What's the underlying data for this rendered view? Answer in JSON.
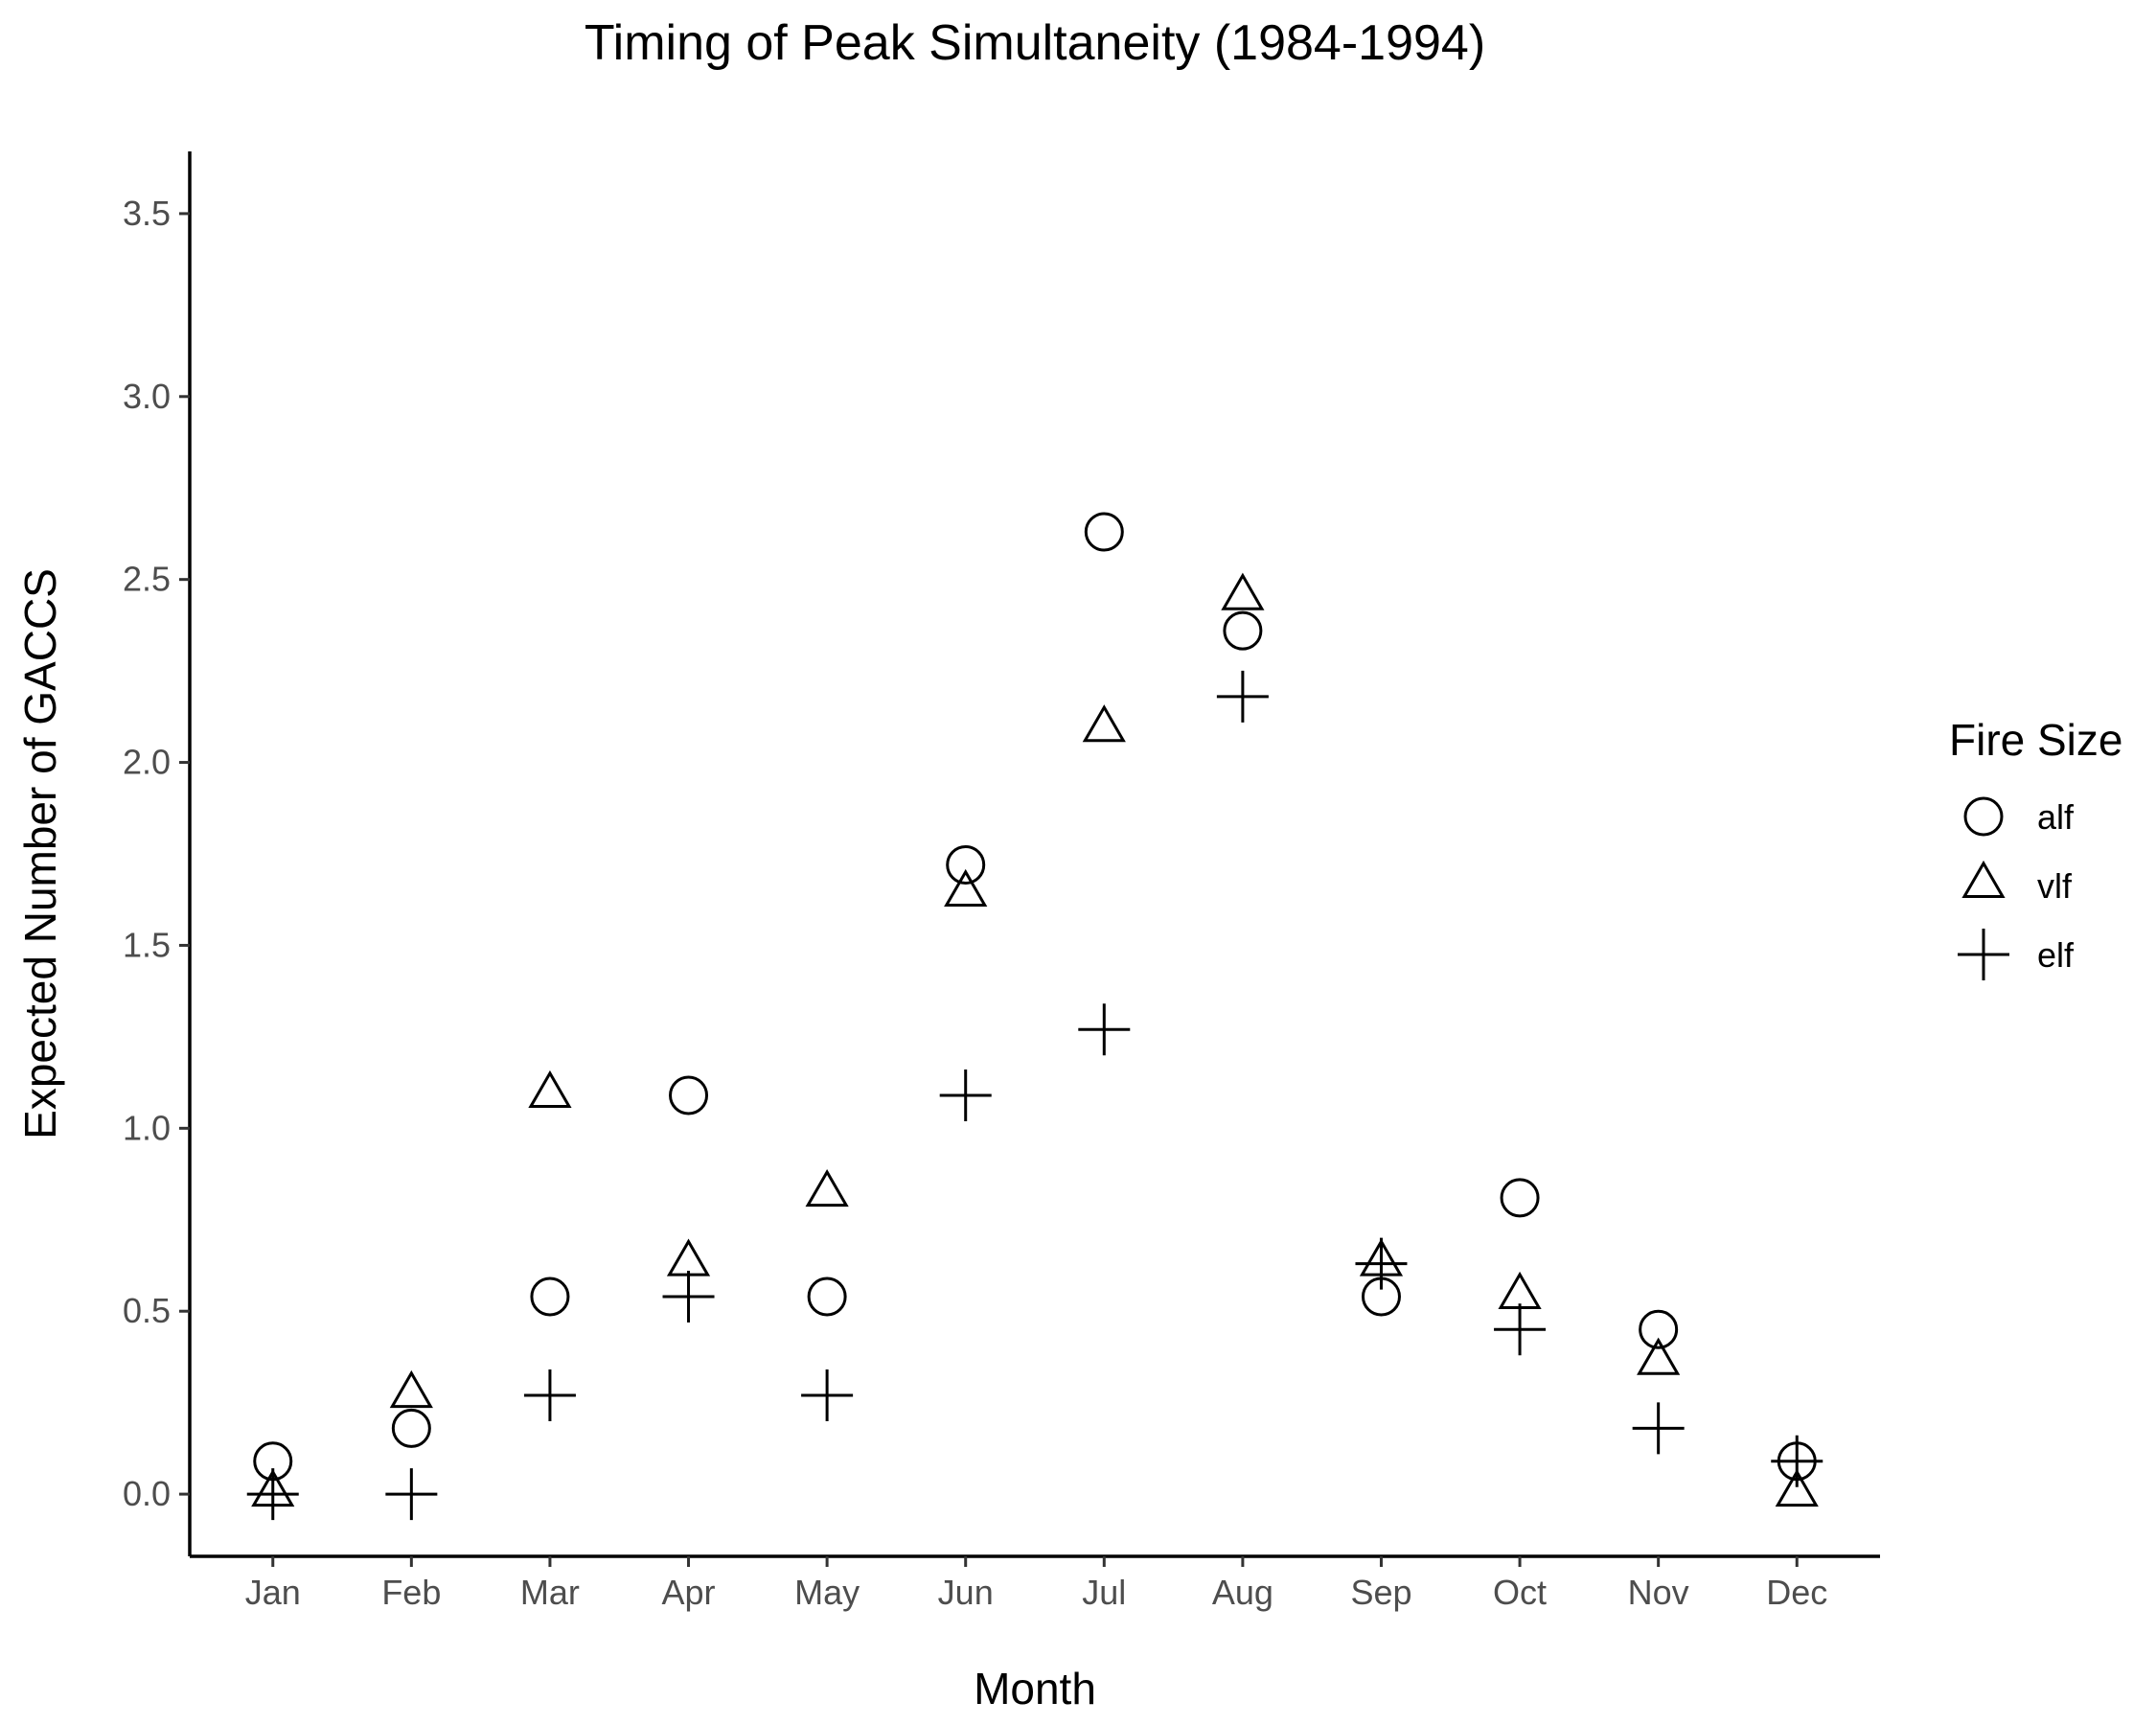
{
  "chart_data": {
    "type": "scatter",
    "title": "Timing of Peak Simultaneity (1984-1994)",
    "xlabel": "Month",
    "ylabel": "Expected Number of GACCS",
    "categories": [
      "Jan",
      "Feb",
      "Mar",
      "Apr",
      "May",
      "Jun",
      "Jul",
      "Aug",
      "Sep",
      "Oct",
      "Nov",
      "Dec"
    ],
    "yticks": [
      "0.0",
      "0.5",
      "1.0",
      "1.5",
      "2.0",
      "2.5",
      "3.0",
      "3.5"
    ],
    "ylim": [
      -0.17,
      3.67
    ],
    "grid": false,
    "legend": {
      "title": "Fire Size",
      "placement": "right"
    },
    "series": [
      {
        "name": "alf",
        "shape": "circle",
        "values": [
          0.09,
          0.18,
          0.54,
          1.09,
          0.54,
          1.72,
          2.63,
          2.36,
          0.54,
          0.81,
          0.45,
          0.09
        ]
      },
      {
        "name": "vlf",
        "shape": "triangle",
        "values": [
          0.0,
          0.27,
          1.09,
          0.63,
          0.82,
          1.64,
          2.09,
          2.45,
          0.63,
          0.54,
          0.36,
          0.0
        ]
      },
      {
        "name": "elf",
        "shape": "plus",
        "values": [
          0.0,
          0.0,
          0.27,
          0.54,
          0.27,
          1.09,
          1.27,
          2.18,
          0.63,
          0.45,
          0.18,
          0.09
        ]
      }
    ]
  }
}
